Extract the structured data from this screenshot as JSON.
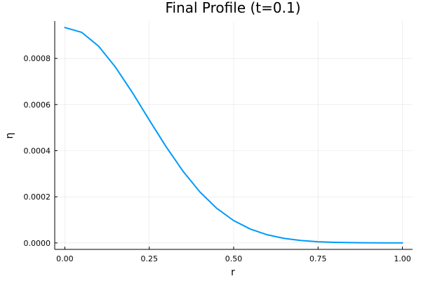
{
  "chart_data": {
    "type": "line",
    "title": "Final Profile (t=0.1)",
    "xlabel": "r",
    "ylabel": "η",
    "xlim": [
      -0.03,
      1.03
    ],
    "ylim": [
      -2.8e-05,
      0.000962
    ],
    "xticks": [
      0.0,
      0.25,
      0.5,
      0.75,
      1.0
    ],
    "xtick_labels": [
      "0.00",
      "0.25",
      "0.50",
      "0.75",
      "1.00"
    ],
    "yticks": [
      0.0,
      0.0002,
      0.0004,
      0.0006,
      0.0008
    ],
    "ytick_labels": [
      "0.0000",
      "0.0002",
      "0.0004",
      "0.0006",
      "0.0008"
    ],
    "grid": true,
    "legend": "none",
    "colors": {
      "series": "#009AFA",
      "axis": "#000000"
    },
    "series": [
      {
        "x": [
          0.0,
          0.05,
          0.1,
          0.15,
          0.2,
          0.25,
          0.3,
          0.35,
          0.4,
          0.45,
          0.5,
          0.55,
          0.6,
          0.65,
          0.7,
          0.75,
          0.8,
          0.85,
          0.9,
          0.95,
          1.0
        ],
        "values": [
          0.000934,
          0.000913,
          0.000853,
          0.000762,
          0.000652,
          0.000533,
          0.000417,
          0.000311,
          0.000221,
          0.00015,
          9.69e-05,
          5.98e-05,
          3.51e-05,
          1.97e-05,
          1.05e-05,
          5.3e-06,
          2.6e-06,
          1.2e-06,
          5e-07,
          2e-07,
          1e-07
        ]
      }
    ]
  }
}
